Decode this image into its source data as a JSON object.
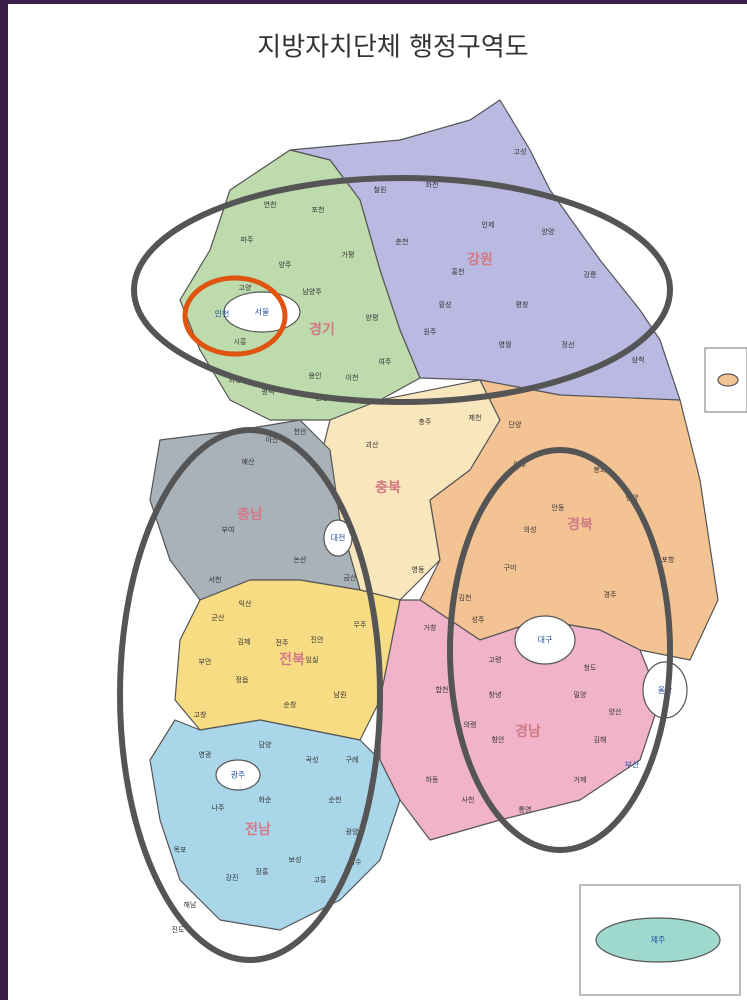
{
  "header": {
    "title": "지방자치단체 행정구역도"
  },
  "provinces": [
    {
      "name": "강원"
    },
    {
      "name": "경기"
    },
    {
      "name": "충북"
    },
    {
      "name": "충남"
    },
    {
      "name": "경북"
    },
    {
      "name": "전북"
    },
    {
      "name": "경남"
    },
    {
      "name": "전남"
    }
  ],
  "metros": [
    {
      "name": "서울"
    },
    {
      "name": "인천"
    },
    {
      "name": "대전"
    },
    {
      "name": "대구"
    },
    {
      "name": "광주"
    },
    {
      "name": "울산"
    },
    {
      "name": "부산"
    },
    {
      "name": "제주"
    }
  ],
  "cities": [
    {
      "name": "연천"
    },
    {
      "name": "포천"
    },
    {
      "name": "파주"
    },
    {
      "name": "양주"
    },
    {
      "name": "가평"
    },
    {
      "name": "고양"
    },
    {
      "name": "남양주"
    },
    {
      "name": "양평"
    },
    {
      "name": "시흥"
    },
    {
      "name": "화성"
    },
    {
      "name": "용인"
    },
    {
      "name": "이천"
    },
    {
      "name": "여주"
    },
    {
      "name": "평택"
    },
    {
      "name": "안성"
    },
    {
      "name": "철원"
    },
    {
      "name": "화천"
    },
    {
      "name": "인제"
    },
    {
      "name": "양양"
    },
    {
      "name": "춘천"
    },
    {
      "name": "홍천"
    },
    {
      "name": "강릉"
    },
    {
      "name": "횡성"
    },
    {
      "name": "평창"
    },
    {
      "name": "원주"
    },
    {
      "name": "영월"
    },
    {
      "name": "정선"
    },
    {
      "name": "삼척"
    },
    {
      "name": "고성"
    },
    {
      "name": "충주"
    },
    {
      "name": "제천"
    },
    {
      "name": "단양"
    },
    {
      "name": "괴산"
    },
    {
      "name": "영동"
    },
    {
      "name": "천안"
    },
    {
      "name": "아산"
    },
    {
      "name": "예산"
    },
    {
      "name": "부여"
    },
    {
      "name": "서천"
    },
    {
      "name": "논산"
    },
    {
      "name": "금산"
    },
    {
      "name": "영주"
    },
    {
      "name": "봉화"
    },
    {
      "name": "안동"
    },
    {
      "name": "영양"
    },
    {
      "name": "의성"
    },
    {
      "name": "포항"
    },
    {
      "name": "구미"
    },
    {
      "name": "경주"
    },
    {
      "name": "김천"
    },
    {
      "name": "성주"
    },
    {
      "name": "고령"
    },
    {
      "name": "청도"
    },
    {
      "name": "군산"
    },
    {
      "name": "익산"
    },
    {
      "name": "김제"
    },
    {
      "name": "전주"
    },
    {
      "name": "정읍"
    },
    {
      "name": "부안"
    },
    {
      "name": "고창"
    },
    {
      "name": "임실"
    },
    {
      "name": "남원"
    },
    {
      "name": "무주"
    },
    {
      "name": "진안"
    },
    {
      "name": "순창"
    },
    {
      "name": "거창"
    },
    {
      "name": "합천"
    },
    {
      "name": "창녕"
    },
    {
      "name": "밀양"
    },
    {
      "name": "의령"
    },
    {
      "name": "함안"
    },
    {
      "name": "김해"
    },
    {
      "name": "하동"
    },
    {
      "name": "사천"
    },
    {
      "name": "거제"
    },
    {
      "name": "통영"
    },
    {
      "name": "양산"
    },
    {
      "name": "영광"
    },
    {
      "name": "담양"
    },
    {
      "name": "곡성"
    },
    {
      "name": "구례"
    },
    {
      "name": "나주"
    },
    {
      "name": "화순"
    },
    {
      "name": "순천"
    },
    {
      "name": "광양"
    },
    {
      "name": "목포"
    },
    {
      "name": "해남"
    },
    {
      "name": "강진"
    },
    {
      "name": "장흥"
    },
    {
      "name": "보성"
    },
    {
      "name": "고흥"
    },
    {
      "name": "여수"
    },
    {
      "name": "진도"
    }
  ]
}
